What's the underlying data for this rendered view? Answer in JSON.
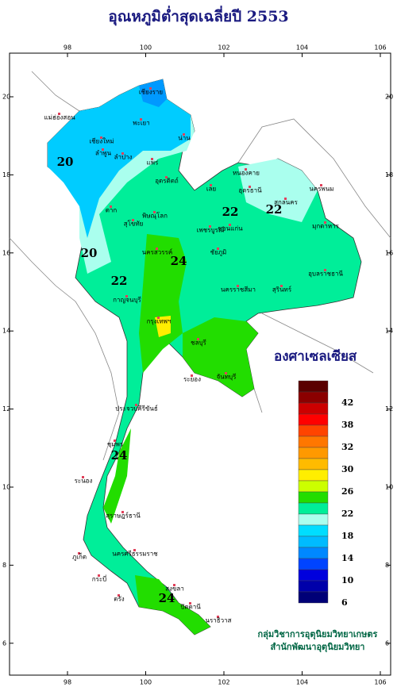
{
  "map": {
    "title": "อุณหภูมิต่ำสุดเฉลี่ยปี 2553",
    "lon_ticks": [
      98,
      100,
      102,
      104,
      106
    ],
    "lat_ticks": [
      6,
      8,
      10,
      12,
      14,
      16,
      18,
      20
    ],
    "contour_labels": [
      "20",
      "20",
      "22",
      "22",
      "22",
      "24",
      "24",
      "24"
    ],
    "places": [
      "เชียงราย",
      "แม่ฮ่องสอน",
      "เชียงใหม่",
      "ลำพูน",
      "พะเยา",
      "น่าน",
      "ลำปาง",
      "แพร่",
      "อุตรดิตถ์",
      "ตาก",
      "สุโขทัย",
      "พิษณุโลก",
      "หนองคาย",
      "เลย",
      "อุดรธานี",
      "นครพนม",
      "สกลนคร",
      "มุกดาหาร",
      "ขอนแก่น",
      "เพชรบูรณ์",
      "นครสวรรค์",
      "ชัยภูมิ",
      "นครราชสีมา",
      "อุบลราชธานี",
      "สุรินทร์",
      "กาญจนบุรี",
      "กรุงเทพฯ",
      "ชลบุรี",
      "จันทบุรี",
      "ระยอง",
      "ประจวบคีรีขันธ์",
      "ชุมพร",
      "ระนอง",
      "สุราษฎร์ธานี",
      "นครศรีธรรมราช",
      "ภูเก็ต",
      "กระบี่",
      "ตรัง",
      "สงขลา",
      "ปัตตานี",
      "นราธิวาส"
    ],
    "legend": {
      "title": "องศาเซลเซียส",
      "labels": [
        42,
        38,
        32,
        30,
        26,
        22,
        18,
        14,
        10,
        6
      ],
      "colors": [
        "#5a0000",
        "#8b0000",
        "#cc0000",
        "#ff0000",
        "#ff4400",
        "#ff7700",
        "#ff9900",
        "#ffbb00",
        "#ffee00",
        "#ccff00",
        "#22dd00",
        "#00ee99",
        "#aaffee",
        "#00ddff",
        "#00bbff",
        "#0088ff",
        "#0044ff",
        "#0000dd",
        "#0000aa",
        "#000077"
      ]
    },
    "credits": [
      "กลุ่มวิชาการอุตุนิยมวิทยาเกษตร",
      "สำนักพัฒนาอุตุนิยมวิทยา"
    ]
  }
}
